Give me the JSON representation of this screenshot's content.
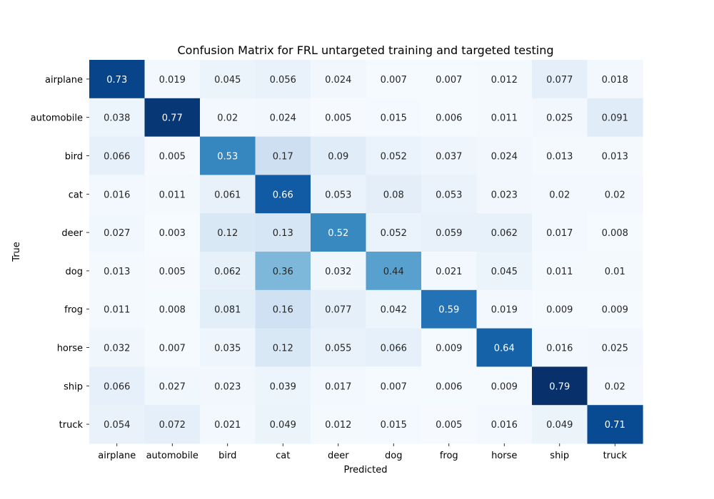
{
  "chart_data": {
    "type": "heatmap",
    "title": "Confusion Matrix for FRL untargeted training and targeted testing",
    "xlabel": "Predicted",
    "ylabel": "True",
    "x_categories": [
      "airplane",
      "automobile",
      "bird",
      "cat",
      "deer",
      "dog",
      "frog",
      "horse",
      "ship",
      "truck"
    ],
    "y_categories": [
      "airplane",
      "automobile",
      "bird",
      "cat",
      "deer",
      "dog",
      "frog",
      "horse",
      "ship",
      "truck"
    ],
    "values": [
      [
        "0.73",
        "0.019",
        "0.045",
        "0.056",
        "0.024",
        "0.007",
        "0.007",
        "0.012",
        "0.077",
        "0.018"
      ],
      [
        "0.038",
        "0.77",
        "0.02",
        "0.024",
        "0.005",
        "0.015",
        "0.006",
        "0.011",
        "0.025",
        "0.091"
      ],
      [
        "0.066",
        "0.005",
        "0.53",
        "0.17",
        "0.09",
        "0.052",
        "0.037",
        "0.024",
        "0.013",
        "0.013"
      ],
      [
        "0.016",
        "0.011",
        "0.061",
        "0.66",
        "0.053",
        "0.08",
        "0.053",
        "0.023",
        "0.02",
        "0.02"
      ],
      [
        "0.027",
        "0.003",
        "0.12",
        "0.13",
        "0.52",
        "0.052",
        "0.059",
        "0.062",
        "0.017",
        "0.008"
      ],
      [
        "0.013",
        "0.005",
        "0.062",
        "0.36",
        "0.032",
        "0.44",
        "0.021",
        "0.045",
        "0.011",
        "0.01"
      ],
      [
        "0.011",
        "0.008",
        "0.081",
        "0.16",
        "0.077",
        "0.042",
        "0.59",
        "0.019",
        "0.009",
        "0.009"
      ],
      [
        "0.032",
        "0.007",
        "0.035",
        "0.12",
        "0.055",
        "0.066",
        "0.009",
        "0.64",
        "0.016",
        "0.025"
      ],
      [
        "0.066",
        "0.027",
        "0.023",
        "0.039",
        "0.017",
        "0.007",
        "0.006",
        "0.009",
        "0.79",
        "0.02"
      ],
      [
        "0.054",
        "0.072",
        "0.021",
        "0.049",
        "0.012",
        "0.015",
        "0.005",
        "0.016",
        "0.049",
        "0.71"
      ]
    ],
    "colormap": "Blues",
    "color_range": [
      0,
      0.79
    ],
    "colorbar": false
  }
}
